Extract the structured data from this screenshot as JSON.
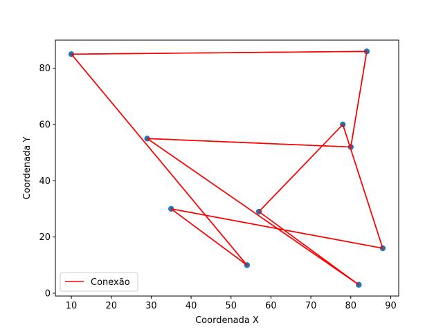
{
  "chart_data": {
    "type": "scatter",
    "xlabel": "Coordenada X",
    "ylabel": "Coordenada Y",
    "xlim": [
      6,
      92
    ],
    "ylim": [
      -1,
      90
    ],
    "x_ticks": [
      10,
      20,
      30,
      40,
      50,
      60,
      70,
      80,
      90
    ],
    "y_ticks": [
      0,
      20,
      40,
      60,
      80
    ],
    "grid": false,
    "legend": {
      "position": "lower-left",
      "entries": [
        "Conexão"
      ]
    },
    "series": [
      {
        "name": "Conexão",
        "kind": "line",
        "color": "#ff0000",
        "points": [
          {
            "x": 10,
            "y": 85
          },
          {
            "x": 84,
            "y": 86
          },
          {
            "x": 80,
            "y": 52
          },
          {
            "x": 29,
            "y": 55
          },
          {
            "x": 82,
            "y": 3
          },
          {
            "x": 57,
            "y": 29
          },
          {
            "x": 78,
            "y": 60
          },
          {
            "x": 88,
            "y": 16
          },
          {
            "x": 35,
            "y": 30
          },
          {
            "x": 54,
            "y": 10
          },
          {
            "x": 10,
            "y": 85
          }
        ]
      },
      {
        "kind": "scatter",
        "color": "#1f77b4",
        "points": [
          {
            "x": 10,
            "y": 85
          },
          {
            "x": 84,
            "y": 86
          },
          {
            "x": 80,
            "y": 52
          },
          {
            "x": 29,
            "y": 55
          },
          {
            "x": 82,
            "y": 3
          },
          {
            "x": 57,
            "y": 29
          },
          {
            "x": 78,
            "y": 60
          },
          {
            "x": 88,
            "y": 16
          },
          {
            "x": 35,
            "y": 30
          },
          {
            "x": 54,
            "y": 10
          }
        ]
      }
    ]
  }
}
